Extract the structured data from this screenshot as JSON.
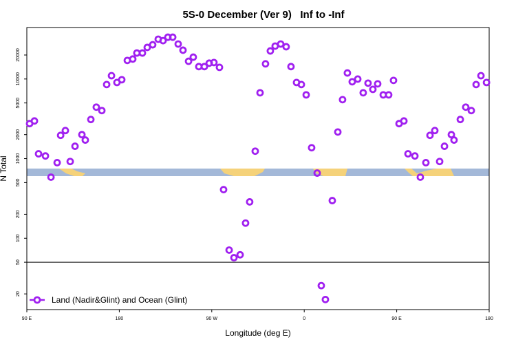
{
  "chart_data": {
    "type": "scatter",
    "title": "5S-0 December (Ver 9)   Inf to -Inf",
    "x_label": "Longitude (deg E)",
    "y_label": "N Total",
    "log_y": true,
    "xlim": [
      90,
      540
    ],
    "ylim": [
      12.7,
      44300
    ],
    "xticks": [
      {
        "value": 90,
        "label": "90 E"
      },
      180,
      {
        "value": 270,
        "label": "90 W"
      },
      {
        "value": 360,
        "label": "0"
      },
      {
        "value": 450,
        "label": "90 E"
      },
      {
        "value": 540,
        "label": "180"
      }
    ],
    "yticks": [
      20,
      50,
      100,
      200,
      500,
      1000,
      2000,
      5000,
      10000,
      20000
    ],
    "reference_line": 50,
    "legend_position": "bottom-left",
    "series": [
      {
        "name": "Land (Nadir&Glint) and Ocean (Glint)",
        "color": "#a020f0",
        "x": [
          92.7,
          97.4,
          101.4,
          108.1,
          113.5,
          119.5,
          122.9,
          127.5,
          132.2,
          136.9,
          143.6,
          146.9,
          152.3,
          157.6,
          163.0,
          167.7,
          172.4,
          177.7,
          182.4,
          187.8,
          193.1,
          197.1,
          202.5,
          207.2,
          212.5,
          217.9,
          222.6,
          227.3,
          232.0,
          237.3,
          242.0,
          247.4,
          252.0,
          257.4,
          262.8,
          267.5,
          272.1,
          277.5,
          281.5,
          286.9,
          291.6,
          297.6,
          302.9,
          306.9,
          312.3,
          317.0,
          322.3,
          327.0,
          331.7,
          337.1,
          342.4,
          347.1,
          352.5,
          357.2,
          361.9,
          367.2,
          372.6,
          376.6,
          380.6,
          387.3,
          392.7,
          397.3,
          402.0,
          406.7,
          412.1,
          417.4,
          422.1,
          426.8,
          431.5,
          436.9,
          442.2,
          446.9,
          452.3,
          457.0,
          461.0,
          467.7,
          473.0,
          478.4,
          482.4,
          487.1,
          491.8,
          496.5,
          503.2,
          505.8,
          511.9,
          517.2,
          522.6,
          527.3,
          532.0,
          537.4
        ],
        "values": [
          2750,
          2970,
          1150,
          1080,
          585,
          890,
          1960,
          2250,
          920,
          1430,
          2000,
          1710,
          3100,
          4430,
          4010,
          8520,
          11000,
          9040,
          9790,
          17100,
          17800,
          21200,
          21200,
          24900,
          26900,
          31600,
          30300,
          33500,
          33500,
          27500,
          23000,
          16700,
          18800,
          14300,
          14300,
          15800,
          16100,
          14000,
          408,
          71,
          57,
          62,
          155,
          286,
          1240,
          6710,
          15500,
          22500,
          25900,
          27500,
          25400,
          14300,
          9040,
          8520,
          6320,
          1370,
          658,
          25.4,
          17,
          297,
          2160,
          5500,
          11900,
          9230,
          9980,
          6710,
          8870,
          7410,
          8690,
          6320,
          6320,
          9600,
          2750,
          2970,
          1150,
          1080,
          585,
          890,
          1960,
          2250,
          920,
          1430,
          2000,
          1710,
          3100,
          4430,
          4010,
          8520,
          11000,
          9040
        ]
      }
    ]
  }
}
